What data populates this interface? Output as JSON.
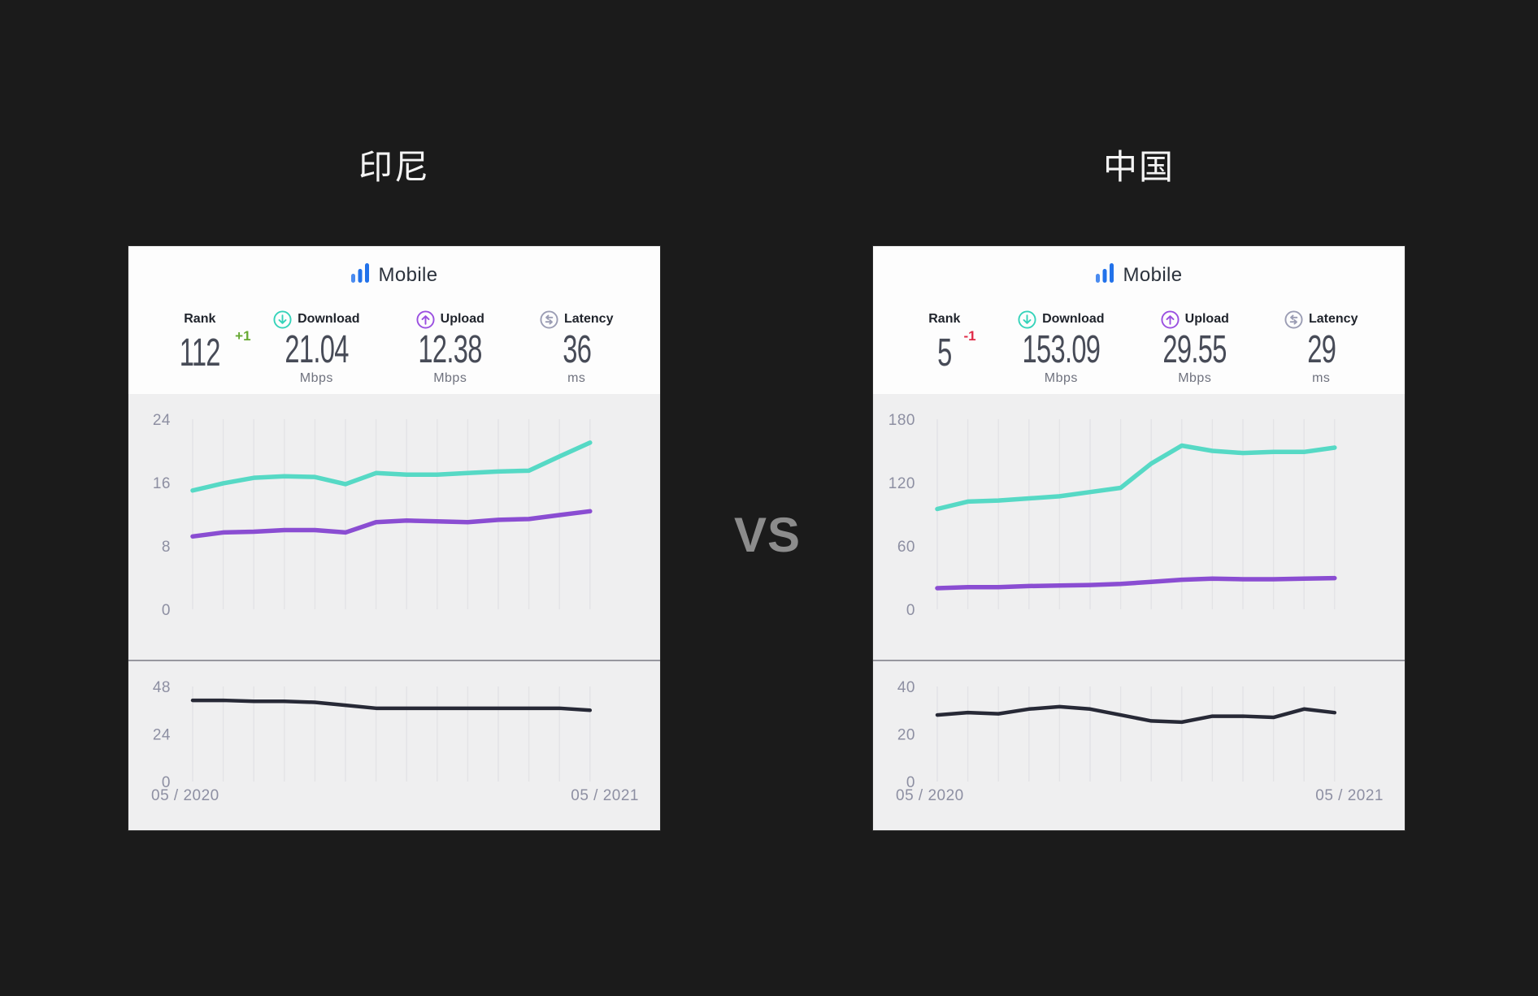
{
  "page": {
    "background": "#1b1b1b",
    "vs_label": "VS"
  },
  "cards": [
    {
      "title": "印尼",
      "mobile_label": "Mobile",
      "stats": {
        "rank": {
          "label": "Rank",
          "value": "112",
          "delta": "+1",
          "delta_color": "#67a934"
        },
        "download": {
          "label": "Download",
          "value": "21.04",
          "unit": "Mbps"
        },
        "upload": {
          "label": "Upload",
          "value": "12.38",
          "unit": "Mbps"
        },
        "latency": {
          "label": "Latency",
          "value": "36",
          "unit": "ms"
        }
      },
      "x_axis": {
        "start": "05 / 2020",
        "end": "05 / 2021"
      }
    },
    {
      "title": "中国",
      "mobile_label": "Mobile",
      "stats": {
        "rank": {
          "label": "Rank",
          "value": "5",
          "delta": "-1",
          "delta_color": "#e02a47"
        },
        "download": {
          "label": "Download",
          "value": "153.09",
          "unit": "Mbps"
        },
        "upload": {
          "label": "Upload",
          "value": "29.55",
          "unit": "Mbps"
        },
        "latency": {
          "label": "Latency",
          "value": "29",
          "unit": "ms"
        }
      },
      "x_axis": {
        "start": "05 / 2020",
        "end": "05 / 2021"
      }
    }
  ],
  "colors": {
    "download_line": "#56d9c5",
    "upload_line": "#8a4dd2",
    "latency_line": "#272936",
    "gridline": "#e3e3e6",
    "tick_label": "#8d8fa2",
    "mobile_icon_blue": "#2272ea"
  },
  "chart_data": [
    {
      "country": "印尼",
      "type": "line",
      "x_range": [
        "05 / 2020",
        "05 / 2021"
      ],
      "grid": true,
      "speed_chart": {
        "ylim": [
          0,
          24
        ],
        "yticks": [
          0,
          8,
          16,
          24
        ],
        "series": [
          {
            "name": "Download",
            "unit": "Mbps",
            "color": "#56d9c5",
            "values": [
              15.0,
              15.9,
              16.6,
              16.8,
              16.7,
              15.8,
              17.2,
              17.0,
              17.0,
              17.2,
              17.4,
              17.5,
              19.3,
              21.04
            ]
          },
          {
            "name": "Upload",
            "unit": "Mbps",
            "color": "#8a4dd2",
            "values": [
              9.2,
              9.7,
              9.8,
              10.0,
              10.0,
              9.7,
              11.0,
              11.2,
              11.1,
              11.0,
              11.3,
              11.4,
              11.9,
              12.38
            ]
          }
        ]
      },
      "latency_chart": {
        "ylim": [
          0,
          48
        ],
        "yticks": [
          0,
          24,
          48
        ],
        "series": [
          {
            "name": "Latency",
            "unit": "ms",
            "color": "#272936",
            "values": [
              41,
              41,
              40.5,
              40.5,
              40,
              38.5,
              37,
              37,
              37,
              37,
              37,
              37,
              37,
              36
            ]
          }
        ]
      }
    },
    {
      "country": "中国",
      "type": "line",
      "x_range": [
        "05 / 2020",
        "05 / 2021"
      ],
      "grid": true,
      "speed_chart": {
        "ylim": [
          0,
          180
        ],
        "yticks": [
          0,
          60,
          120,
          180
        ],
        "series": [
          {
            "name": "Download",
            "unit": "Mbps",
            "color": "#56d9c5",
            "values": [
              95,
              102,
              103,
              105,
              107,
              111,
              115,
              138,
              155,
              150,
              148,
              149,
              149,
              153.09
            ]
          },
          {
            "name": "Upload",
            "unit": "Mbps",
            "color": "#8a4dd2",
            "values": [
              20,
              21,
              21,
              22,
              22.5,
              23,
              24,
              26,
              28,
              29,
              28.5,
              28.5,
              29,
              29.55
            ]
          }
        ]
      },
      "latency_chart": {
        "ylim": [
          0,
          40
        ],
        "yticks": [
          0,
          20,
          40
        ],
        "series": [
          {
            "name": "Latency",
            "unit": "ms",
            "color": "#272936",
            "values": [
              28,
              29,
              28.5,
              30.5,
              31.5,
              30.5,
              28,
              25.5,
              25,
              27.5,
              27.5,
              27,
              30.5,
              29
            ]
          }
        ]
      }
    }
  ]
}
